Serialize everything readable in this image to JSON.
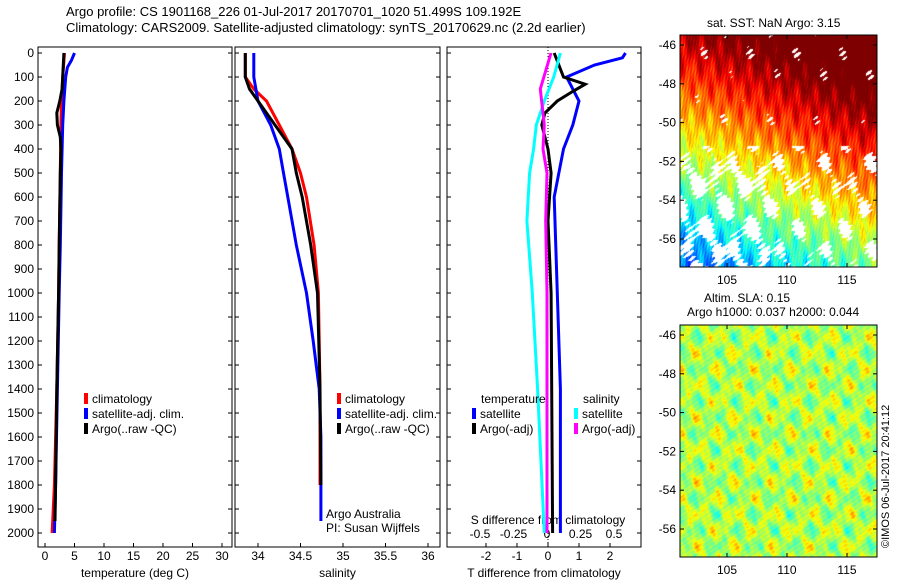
{
  "title": {
    "line1": "Argo profile: CS 1901168_226 01-Jul-2017 20170701_1020 51.499S 109.192E",
    "line2": "Climatology: CARS2009. Satellite-adjusted climatology: synTS_20170629.nc (2.2d earlier)"
  },
  "colors": {
    "climatology": "#ff0000",
    "satellite": "#0000ff",
    "argo": "#000000",
    "sal_satellite": "#00ffff",
    "sal_argo": "#ff00ff"
  },
  "legend_t": {
    "items": [
      "climatology",
      "satellite-adj. clim.",
      "Argo(..raw -QC)"
    ]
  },
  "legend_s": {
    "items": [
      "climatology",
      "satellite-adj. clim.",
      "Argo(..raw -QC)"
    ]
  },
  "legend_d": {
    "temperature": "temperature",
    "salinity": "salinity",
    "t_items": [
      "satellite",
      "Argo(-adj)"
    ],
    "s_items": [
      "satellite",
      "Argo(-adj)"
    ]
  },
  "credit": {
    "line1": "Argo Australia",
    "line2": "PI: Susan Wijffels"
  },
  "maps": {
    "sst_title": "sat. SST: NaN Argo: 3.15",
    "sla_title1": "Altim. SLA: 0.15",
    "sla_title2": "Argo h1000: 0.037 h2000: 0.044",
    "copyright": "©IMOS 06-Jul-2017 20:41:12"
  },
  "chart_data": [
    {
      "type": "line",
      "xlabel": "temperature (deg C)",
      "xlim": [
        -1,
        31
      ],
      "ylim": [
        2050,
        0
      ],
      "xticks": [
        0,
        5,
        10,
        15,
        20,
        25,
        30
      ],
      "yticks": [
        0,
        100,
        200,
        300,
        400,
        500,
        600,
        700,
        800,
        900,
        1000,
        1100,
        1200,
        1300,
        1400,
        1500,
        1600,
        1700,
        1800,
        1900,
        2000
      ],
      "series": [
        {
          "name": "climatology",
          "depth": [
            0,
            100,
            200,
            300,
            500,
            800,
            1000,
            1400,
            1800,
            1950,
            2000
          ],
          "values": [
            3.3,
            3.0,
            2.8,
            2.7,
            2.6,
            2.4,
            2.3,
            2.0,
            1.6,
            1.3,
            1.2
          ]
        },
        {
          "name": "satellite-adj. clim.",
          "depth": [
            0,
            30,
            60,
            100,
            200,
            300,
            500,
            800,
            1000,
            1400,
            1800,
            2000
          ],
          "values": [
            5.0,
            4.5,
            3.8,
            3.5,
            3.2,
            3.0,
            2.8,
            2.6,
            2.4,
            2.1,
            1.8,
            1.6
          ]
        },
        {
          "name": "Argo(..raw -QC)",
          "depth": [
            0,
            100,
            150,
            200,
            250,
            300,
            350,
            400,
            500,
            800,
            1000,
            1400,
            1800,
            1950
          ],
          "values": [
            3.2,
            3.0,
            2.9,
            2.5,
            2.0,
            2.1,
            2.6,
            2.7,
            2.6,
            2.4,
            2.3,
            2.0,
            1.8,
            1.7
          ]
        }
      ]
    },
    {
      "type": "line",
      "xlabel": "salinity",
      "xlim": [
        33.8,
        36.1
      ],
      "ylim": [
        2050,
        0
      ],
      "xticks": [
        34,
        34.5,
        35,
        35.5,
        36
      ],
      "series": [
        {
          "name": "climatology",
          "depth": [
            0,
            100,
            150,
            200,
            300,
            400,
            500,
            600,
            800,
            1000,
            1400,
            1800
          ],
          "values": [
            33.85,
            33.85,
            33.95,
            34.1,
            34.25,
            34.4,
            34.5,
            34.57,
            34.66,
            34.71,
            34.73,
            34.73
          ]
        },
        {
          "name": "satellite-adj. clim.",
          "depth": [
            0,
            100,
            200,
            300,
            400,
            500,
            600,
            800,
            1000,
            1200,
            1400,
            1600,
            1950
          ],
          "values": [
            33.95,
            33.95,
            34.0,
            34.15,
            34.25,
            34.3,
            34.35,
            34.45,
            34.57,
            34.65,
            34.72,
            34.74,
            34.74
          ]
        },
        {
          "name": "Argo(..raw -QC)",
          "depth": [
            0,
            100,
            150,
            200,
            300,
            400,
            500,
            600,
            800,
            1000,
            1400,
            1800
          ],
          "values": [
            33.85,
            33.85,
            33.9,
            34.0,
            34.2,
            34.4,
            34.45,
            34.52,
            34.62,
            34.7,
            34.73,
            34.74
          ]
        }
      ]
    },
    {
      "type": "line",
      "xlabel": "T difference from climatology",
      "x2label": "S difference from climatology",
      "xlim": [
        -3,
        3
      ],
      "x2lim": [
        -0.7,
        0.7
      ],
      "xticks": [
        -2,
        -1,
        0,
        1,
        2
      ],
      "x2ticks": [
        -0.5,
        -0.25,
        0,
        0.25,
        0.5
      ],
      "x2ticklabels": [
        "-0.5",
        "-0.25",
        "0",
        "0.25",
        "0.5"
      ],
      "series": [
        {
          "name": "temperature satellite",
          "axis": "T",
          "depth": [
            0,
            20,
            50,
            100,
            200,
            300,
            400,
            600,
            1000,
            1400,
            2000
          ],
          "values": [
            2.5,
            2.4,
            1.5,
            0.6,
            1.0,
            0.8,
            0.5,
            0.2,
            0.3,
            0.4,
            0.4
          ]
        },
        {
          "name": "temperature Argo(-adj)",
          "axis": "T",
          "depth": [
            0,
            100,
            130,
            160,
            200,
            250,
            300,
            400,
            500,
            700,
            1000,
            2000
          ],
          "values": [
            0.2,
            0.5,
            1.2,
            0.8,
            0.3,
            -0.1,
            -0.2,
            0.0,
            0.1,
            0.0,
            0.1,
            0.15
          ]
        },
        {
          "name": "salinity satellite",
          "axis": "S",
          "depth": [
            0,
            100,
            200,
            300,
            400,
            500,
            700,
            1000,
            1400,
            2000
          ],
          "values": [
            0.1,
            0.05,
            -0.02,
            -0.08,
            -0.1,
            -0.13,
            -0.15,
            -0.11,
            -0.07,
            -0.02
          ]
        },
        {
          "name": "salinity Argo(-adj)",
          "axis": "S",
          "depth": [
            0,
            150,
            300,
            400,
            500,
            700,
            1000,
            2000
          ],
          "values": [
            0.03,
            -0.05,
            -0.02,
            -0.03,
            0.0,
            -0.01,
            0,
            0
          ]
        }
      ]
    },
    {
      "type": "heatmap",
      "title": "sat. SST: NaN Argo: 3.15",
      "xticks": [
        105,
        110,
        115
      ],
      "yticks": [
        -46,
        -48,
        -50,
        -52,
        -54,
        -56
      ],
      "xlim": [
        101,
        117.4
      ],
      "ylim": [
        -57.5,
        -45.5
      ]
    },
    {
      "type": "heatmap",
      "title": "Altim. SLA: 0.15",
      "xticks": [
        105,
        110,
        115
      ],
      "yticks": [
        -46,
        -48,
        -50,
        -52,
        -54,
        -56
      ],
      "xlim": [
        101,
        117.4
      ],
      "ylim": [
        -57.5,
        -45.5
      ]
    }
  ]
}
